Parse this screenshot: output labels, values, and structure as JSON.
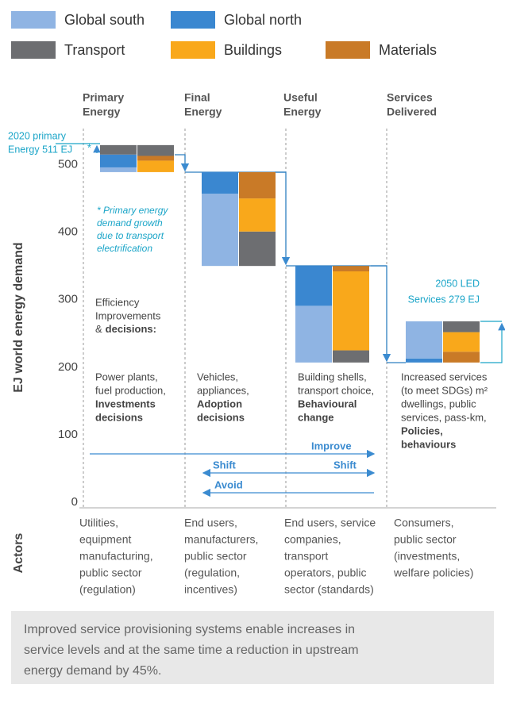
{
  "chart_data": {
    "type": "bar",
    "series": [
      {
        "name": "Global south",
        "color": "#8fb4e3"
      },
      {
        "name": "Global north",
        "color": "#3a87d0"
      },
      {
        "name": "Transport",
        "color": "#6d6e71"
      },
      {
        "name": "Buildings",
        "color": "#f9a81b"
      },
      {
        "name": "Materials",
        "color": "#c97a27"
      }
    ],
    "ylabel": "EJ world energy demand",
    "ylim": [
      0,
      550
    ],
    "yticks": [
      0,
      100,
      200,
      300,
      400,
      500
    ],
    "stages": [
      {
        "title": [
          "Primary",
          "Energy"
        ],
        "bars": [
          {
            "base": 489,
            "segments": [
              {
                "color": "#8fb4e3",
                "value": 7
              },
              {
                "color": "#3a87d0",
                "value": 19
              },
              {
                "color": "#6d6e71",
                "value": 14
              }
            ]
          },
          {
            "base": 489,
            "segments": [
              {
                "color": "#f9a81b",
                "value": 17
              },
              {
                "color": "#c97a27",
                "value": 7
              },
              {
                "color": "#6d6e71",
                "value": 16
              }
            ]
          }
        ],
        "description": {
          "plain": [
            "Power plants,",
            "fuel production,"
          ],
          "bold": [
            "Investments",
            "decisions"
          ]
        },
        "actors": [
          "Utilities,",
          "equipment",
          "manufacturing,",
          "public sector",
          "(regulation)"
        ]
      },
      {
        "title": [
          "Final",
          "Energy"
        ],
        "bars": [
          {
            "base": 350,
            "segments": [
              {
                "color": "#8fb4e3",
                "value": 107
              },
              {
                "color": "#3a87d0",
                "value": 32
              }
            ]
          },
          {
            "base": 350,
            "segments": [
              {
                "color": "#6d6e71",
                "value": 51
              },
              {
                "color": "#f9a81b",
                "value": 49
              },
              {
                "color": "#c97a27",
                "value": 39
              }
            ]
          }
        ],
        "description": {
          "plain": [
            "Vehicles,",
            "appliances,"
          ],
          "bold": [
            "Adoption",
            "decisions"
          ]
        },
        "actors": [
          "End users,",
          "manufacturers,",
          "public sector",
          "(regulation,",
          "incentives)"
        ]
      },
      {
        "title": [
          "Useful",
          "Energy"
        ],
        "bars": [
          {
            "base": 207,
            "segments": [
              {
                "color": "#8fb4e3",
                "value": 84
              },
              {
                "color": "#3a87d0",
                "value": 59
              }
            ]
          },
          {
            "base": 207,
            "segments": [
              {
                "color": "#6d6e71",
                "value": 18
              },
              {
                "color": "#f9a81b",
                "value": 117
              },
              {
                "color": "#c97a27",
                "value": 8
              }
            ]
          }
        ],
        "description": {
          "plain": [
            "Building shells,",
            "transport choice,"
          ],
          "bold": [
            "Behavioural",
            "change"
          ]
        },
        "actors": [
          "End users, service",
          "companies,",
          "transport",
          "operators, public",
          "sector (standards)"
        ]
      },
      {
        "title": [
          "Services",
          "Delivered"
        ],
        "bars": [
          {
            "base": 207,
            "segments": [
              {
                "color": "#3a87d0",
                "value": 6
              },
              {
                "color": "#8fb4e3",
                "value": 55
              }
            ]
          },
          {
            "base": 207,
            "segments": [
              {
                "color": "#c97a27",
                "value": 16
              },
              {
                "color": "#f9a81b",
                "value": 29
              },
              {
                "color": "#6d6e71",
                "value": 16
              }
            ]
          }
        ],
        "description": {
          "plain": [
            "Increased services",
            "(to meet SDGs) m²",
            "dwellings, public",
            "services, pass-km,"
          ],
          "bold": [
            "Policies,",
            "behaviours"
          ]
        },
        "actors": [
          "Consumers,",
          "public sector",
          "(investments,",
          "welfare policies)"
        ]
      }
    ],
    "primary_label": [
      "2020 primary",
      "Energy 511 EJ"
    ],
    "star": "*",
    "note": [
      "* Primary energy",
      "demand growth",
      "due to transport",
      "electrification"
    ],
    "efficiency": {
      "lines": [
        "Efficiency",
        "Improvements"
      ],
      "plain": "&",
      "bold": "decisions:"
    },
    "led_label": [
      "2050 LED",
      "Services 279 EJ"
    ],
    "arrows": {
      "improve": "Improve",
      "shift": "Shift",
      "avoid": "Avoid"
    },
    "actors_label": "Actors",
    "footer": [
      "Improved service provisioning systems enable increases in",
      "service levels and at the same time a reduction in upstream",
      "energy demand by 45%."
    ]
  }
}
